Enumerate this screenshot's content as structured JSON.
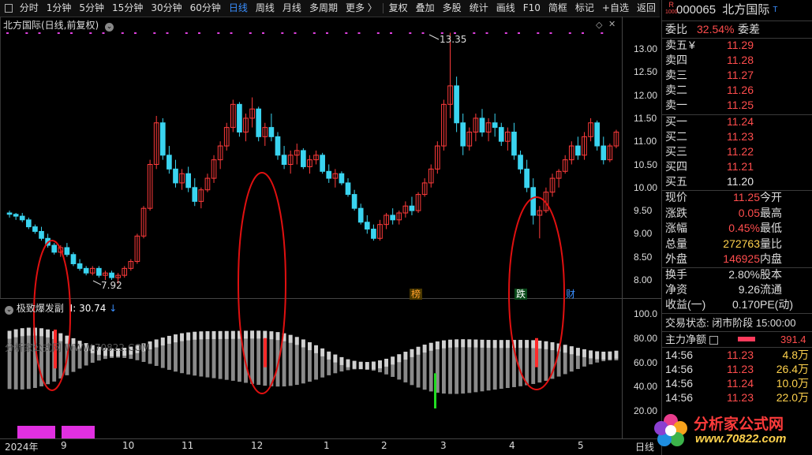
{
  "toolbar": {
    "periods": [
      "分时",
      "1分钟",
      "5分钟",
      "15分钟",
      "30分钟",
      "60分钟",
      "日线",
      "周线",
      "月线",
      "多周期",
      "更多 〉"
    ],
    "active_period": "日线",
    "tools": [
      "复权",
      "叠加",
      "多股",
      "统计",
      "画线",
      "F10",
      "简框",
      "标记",
      "+自选",
      "返回"
    ]
  },
  "chart": {
    "title": "北方国际(日线,前复权)",
    "high_label": "13.35",
    "low_label": "7.92",
    "y_ticks": [
      "13.00",
      "12.50",
      "12.00",
      "11.50",
      "11.00",
      "10.50",
      "10.00",
      "9.50",
      "9.00",
      "8.50",
      "8.00"
    ],
    "badges": [
      "榜",
      "跌",
      "财"
    ]
  },
  "indicator": {
    "name": "极致爆发副",
    "value_label": "I: 30.74",
    "watermark": "分析家公式网 WWW.70822.COM",
    "y_ticks": [
      "100.0",
      "80.00",
      "60.00",
      "40.00",
      "20.00"
    ]
  },
  "x_axis": {
    "labels": [
      "2024年",
      "9",
      "10",
      "11",
      "12",
      "1",
      "2",
      "3",
      "4",
      "5"
    ],
    "corner": "日线"
  },
  "quote": {
    "code": "000065",
    "name": "北方国际",
    "r_badge": "R",
    "r_num": "1000",
    "weibi_label": "委比",
    "weibi": "32.54%",
    "weicha_label": "委差",
    "sells": [
      {
        "label": "卖五",
        "mark": "¥",
        "price": "11.29"
      },
      {
        "label": "卖四",
        "mark": "",
        "price": "11.28"
      },
      {
        "label": "卖三",
        "mark": "",
        "price": "11.27"
      },
      {
        "label": "卖二",
        "mark": "",
        "price": "11.26"
      },
      {
        "label": "卖一",
        "mark": "",
        "price": "11.25"
      }
    ],
    "buys": [
      {
        "label": "买一",
        "price": "11.24"
      },
      {
        "label": "买二",
        "price": "11.23"
      },
      {
        "label": "买三",
        "price": "11.22"
      },
      {
        "label": "买四",
        "price": "11.21"
      },
      {
        "label": "买五",
        "price": "11.20"
      }
    ],
    "stats": [
      {
        "l1": "现价",
        "v1": "11.25",
        "l2": "今开"
      },
      {
        "l1": "涨跌",
        "v1": "0.05",
        "l2": "最高"
      },
      {
        "l1": "涨幅",
        "v1": "0.45%",
        "l2": "最低"
      },
      {
        "l1": "总量",
        "v1": "272763",
        "l2": "量比"
      },
      {
        "l1": "外盘",
        "v1": "146925",
        "l2": "内盘"
      }
    ],
    "stats2": [
      {
        "l1": "换手",
        "v1": "2.80%",
        "l2": "股本"
      },
      {
        "l1": "净资",
        "v1": "9.26",
        "l2": "流通"
      },
      {
        "l1": "收益(一)",
        "v1": "0.170",
        "l2": "PE(动)"
      }
    ],
    "trade_status": "交易状态: 闭市阶段 15:00:00",
    "net_label": "主力净额",
    "net_value": "391.4",
    "ticks": [
      {
        "time": "14:56",
        "price": "11.23",
        "vol": "4.8万"
      },
      {
        "time": "14:56",
        "price": "11.23",
        "vol": "26.4万"
      },
      {
        "time": "14:56",
        "price": "11.24",
        "vol": "10.0万"
      },
      {
        "time": "14:56",
        "price": "11.23",
        "vol": "22.0万"
      }
    ],
    "logo_text": "分析家公式网",
    "logo_url": "www.70822.com"
  },
  "chart_data": {
    "type": "candlestick",
    "y_range": [
      7.7,
      13.45
    ],
    "bars": [
      [
        9.45,
        9.5,
        9.35,
        9.42
      ],
      [
        9.42,
        9.45,
        9.3,
        9.38
      ],
      [
        9.38,
        9.45,
        9.25,
        9.3
      ],
      [
        9.3,
        9.35,
        9.1,
        9.15
      ],
      [
        9.15,
        9.2,
        9.0,
        9.05
      ],
      [
        9.05,
        9.15,
        8.85,
        8.9
      ],
      [
        8.9,
        9.0,
        8.7,
        8.75
      ],
      [
        8.75,
        8.8,
        8.55,
        8.6
      ],
      [
        8.6,
        8.75,
        8.5,
        8.7
      ],
      [
        8.7,
        8.8,
        8.5,
        8.55
      ],
      [
        8.55,
        8.6,
        8.3,
        8.35
      ],
      [
        8.35,
        8.45,
        8.2,
        8.25
      ],
      [
        8.25,
        8.3,
        8.1,
        8.15
      ],
      [
        8.15,
        8.3,
        8.1,
        8.25
      ],
      [
        8.25,
        8.3,
        8.05,
        8.1
      ],
      [
        8.1,
        8.2,
        8.0,
        8.15
      ],
      [
        8.15,
        8.2,
        8.0,
        8.05
      ],
      [
        8.05,
        8.15,
        7.92,
        8.1
      ],
      [
        8.1,
        8.3,
        8.05,
        8.25
      ],
      [
        8.25,
        8.45,
        8.2,
        8.4
      ],
      [
        8.4,
        9.0,
        8.35,
        8.95
      ],
      [
        8.95,
        9.6,
        8.9,
        9.55
      ],
      [
        9.55,
        10.6,
        9.5,
        10.5
      ],
      [
        10.5,
        11.55,
        10.4,
        11.4
      ],
      [
        11.4,
        11.5,
        10.6,
        10.7
      ],
      [
        10.7,
        10.9,
        10.3,
        10.4
      ],
      [
        10.4,
        10.6,
        10.0,
        10.1
      ],
      [
        10.1,
        10.4,
        9.95,
        10.3
      ],
      [
        10.3,
        10.45,
        9.9,
        10.0
      ],
      [
        10.0,
        10.2,
        9.6,
        9.7
      ],
      [
        9.7,
        10.0,
        9.55,
        9.95
      ],
      [
        9.95,
        10.3,
        9.9,
        10.2
      ],
      [
        10.2,
        10.7,
        10.1,
        10.6
      ],
      [
        10.6,
        11.0,
        10.4,
        10.9
      ],
      [
        10.9,
        11.4,
        10.8,
        11.3
      ],
      [
        11.3,
        11.9,
        11.2,
        11.8
      ],
      [
        11.8,
        11.85,
        11.1,
        11.2
      ],
      [
        11.2,
        11.6,
        11.0,
        11.5
      ],
      [
        11.5,
        11.95,
        11.3,
        11.7
      ],
      [
        11.7,
        11.75,
        11.0,
        11.1
      ],
      [
        11.1,
        11.4,
        10.9,
        11.3
      ],
      [
        11.3,
        11.6,
        11.0,
        11.1
      ],
      [
        11.1,
        11.2,
        10.6,
        10.7
      ],
      [
        10.7,
        10.9,
        10.4,
        10.5
      ],
      [
        10.5,
        10.8,
        10.3,
        10.7
      ],
      [
        10.7,
        10.95,
        10.5,
        10.8
      ],
      [
        10.8,
        10.85,
        10.4,
        10.45
      ],
      [
        10.45,
        10.7,
        10.3,
        10.6
      ],
      [
        10.6,
        10.8,
        10.5,
        10.7
      ],
      [
        10.7,
        10.75,
        10.3,
        10.35
      ],
      [
        10.35,
        10.5,
        10.1,
        10.2
      ],
      [
        10.2,
        10.4,
        10.0,
        10.3
      ],
      [
        10.3,
        10.35,
        10.05,
        10.1
      ],
      [
        10.1,
        10.2,
        9.8,
        9.85
      ],
      [
        9.85,
        9.95,
        9.5,
        9.55
      ],
      [
        9.55,
        9.65,
        9.2,
        9.25
      ],
      [
        9.25,
        9.4,
        9.0,
        9.1
      ],
      [
        9.1,
        9.2,
        8.85,
        8.9
      ],
      [
        8.9,
        9.3,
        8.85,
        9.2
      ],
      [
        9.2,
        9.45,
        9.1,
        9.4
      ],
      [
        9.4,
        9.55,
        9.2,
        9.3
      ],
      [
        9.3,
        9.5,
        9.2,
        9.45
      ],
      [
        9.45,
        9.7,
        9.35,
        9.6
      ],
      [
        9.6,
        9.8,
        9.4,
        9.5
      ],
      [
        9.5,
        9.9,
        9.45,
        9.85
      ],
      [
        9.85,
        10.2,
        9.8,
        10.1
      ],
      [
        10.1,
        10.5,
        10.0,
        10.4
      ],
      [
        10.4,
        11.0,
        10.3,
        10.9
      ],
      [
        10.9,
        11.9,
        10.8,
        11.8
      ],
      [
        11.8,
        13.35,
        11.5,
        12.2
      ],
      [
        12.2,
        12.4,
        11.2,
        11.4
      ],
      [
        11.4,
        11.6,
        10.7,
        10.9
      ],
      [
        10.9,
        11.3,
        10.8,
        11.2
      ],
      [
        11.2,
        11.6,
        11.0,
        11.5
      ],
      [
        11.5,
        11.7,
        11.1,
        11.2
      ],
      [
        11.2,
        11.5,
        11.0,
        11.4
      ],
      [
        11.4,
        11.6,
        11.1,
        11.3
      ],
      [
        11.3,
        11.4,
        10.9,
        11.0
      ],
      [
        11.0,
        11.3,
        10.8,
        11.2
      ],
      [
        11.2,
        11.4,
        10.6,
        10.7
      ],
      [
        10.7,
        10.8,
        10.3,
        10.4
      ],
      [
        10.4,
        10.6,
        9.9,
        10.0
      ],
      [
        10.0,
        10.2,
        9.2,
        9.4
      ],
      [
        9.4,
        9.6,
        8.9,
        9.5
      ],
      [
        9.5,
        10.0,
        9.45,
        9.9
      ],
      [
        9.9,
        10.3,
        9.8,
        10.2
      ],
      [
        10.2,
        10.4,
        10.0,
        10.35
      ],
      [
        10.35,
        10.7,
        10.3,
        10.6
      ],
      [
        10.6,
        11.0,
        10.5,
        10.9
      ],
      [
        10.9,
        11.1,
        10.6,
        10.7
      ],
      [
        10.7,
        11.2,
        10.6,
        11.1
      ],
      [
        11.1,
        11.5,
        11.0,
        11.4
      ],
      [
        11.4,
        11.45,
        10.8,
        10.9
      ],
      [
        10.9,
        11.1,
        10.5,
        10.6
      ],
      [
        10.6,
        10.95,
        10.55,
        10.9
      ],
      [
        10.9,
        11.25,
        10.85,
        11.2
      ]
    ]
  }
}
